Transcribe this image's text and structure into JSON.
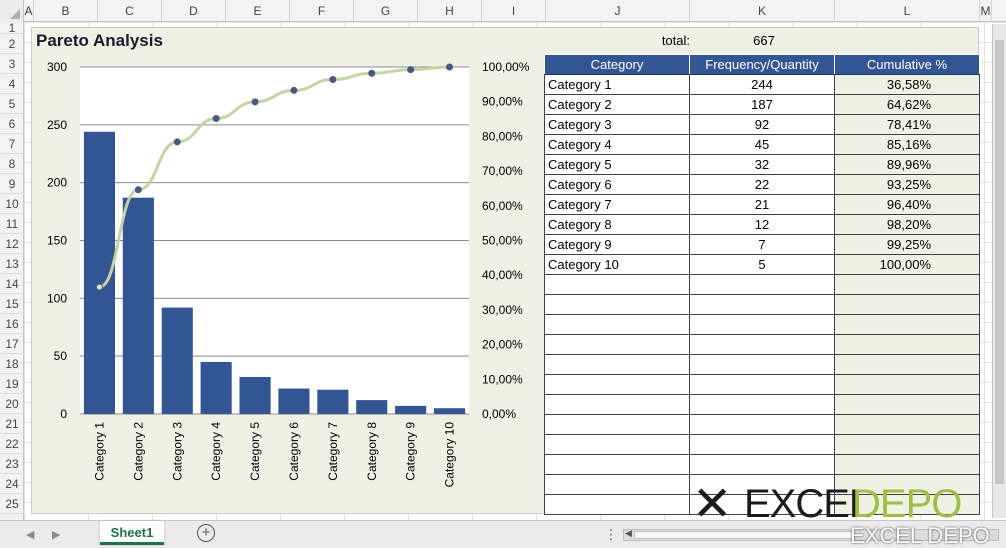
{
  "columns": [
    "A",
    "B",
    "C",
    "D",
    "E",
    "F",
    "G",
    "H",
    "I",
    "J",
    "K",
    "L",
    "M"
  ],
  "rows": [
    "1",
    "2",
    "3",
    "4",
    "5",
    "6",
    "7",
    "8",
    "9",
    "10",
    "11",
    "12",
    "13",
    "14",
    "15",
    "16",
    "17",
    "18",
    "19",
    "20",
    "21",
    "22",
    "23",
    "24",
    "25"
  ],
  "summary": {
    "total_label": "total:",
    "total_value": "667"
  },
  "table": {
    "headers": [
      "Category",
      "Frequency/Quantity",
      "Cumulative %"
    ],
    "rows": [
      [
        "Category 1",
        "244",
        "36,58%"
      ],
      [
        "Category 2",
        "187",
        "64,62%"
      ],
      [
        "Category 3",
        "92",
        "78,41%"
      ],
      [
        "Category 4",
        "45",
        "85,16%"
      ],
      [
        "Category 5",
        "32",
        "89,96%"
      ],
      [
        "Category 6",
        "22",
        "93,25%"
      ],
      [
        "Category 7",
        "21",
        "96,40%"
      ],
      [
        "Category 8",
        "12",
        "98,20%"
      ],
      [
        "Category 9",
        "7",
        "99,25%"
      ],
      [
        "Category 10",
        "5",
        "100,00%"
      ]
    ],
    "empty_rows": 12
  },
  "chart_data": {
    "type": "bar",
    "title": "Pareto Analysis",
    "categories": [
      "Category 1",
      "Category 2",
      "Category 3",
      "Category 4",
      "Category 5",
      "Category 6",
      "Category 7",
      "Category 8",
      "Category 9",
      "Category 10"
    ],
    "series": [
      {
        "type": "bar",
        "axis": "left",
        "color": "#335593",
        "values": [
          244,
          187,
          92,
          45,
          32,
          22,
          21,
          12,
          7,
          5
        ]
      },
      {
        "type": "line",
        "axis": "right",
        "color": "#c5d3a6",
        "marker_color": "#4a5a7a",
        "values": [
          36.58,
          64.62,
          78.41,
          85.16,
          89.96,
          93.25,
          96.4,
          98.2,
          99.25,
          100.0
        ]
      }
    ],
    "ylim": [
      0,
      300
    ],
    "y_ticks": [
      "0",
      "50",
      "100",
      "150",
      "200",
      "250",
      "300"
    ],
    "y2lim": [
      0,
      100
    ],
    "y2_ticks": [
      "0,00%",
      "10,00%",
      "20,00%",
      "30,00%",
      "40,00%",
      "50,00%",
      "60,00%",
      "70,00%",
      "80,00%",
      "90,00%",
      "100,00%"
    ],
    "grid": true,
    "legend": "none"
  },
  "sheets": {
    "active": "Sheet1"
  },
  "watermark": {
    "icon": "x-logo-icon",
    "word1": "EXCEL",
    "word2": "DEPO",
    "sub": "EXCEL DEPO"
  },
  "colors": {
    "header_fill": "#335593",
    "panel_fill": "#eef1e4",
    "tab_accent": "#1e7145"
  }
}
